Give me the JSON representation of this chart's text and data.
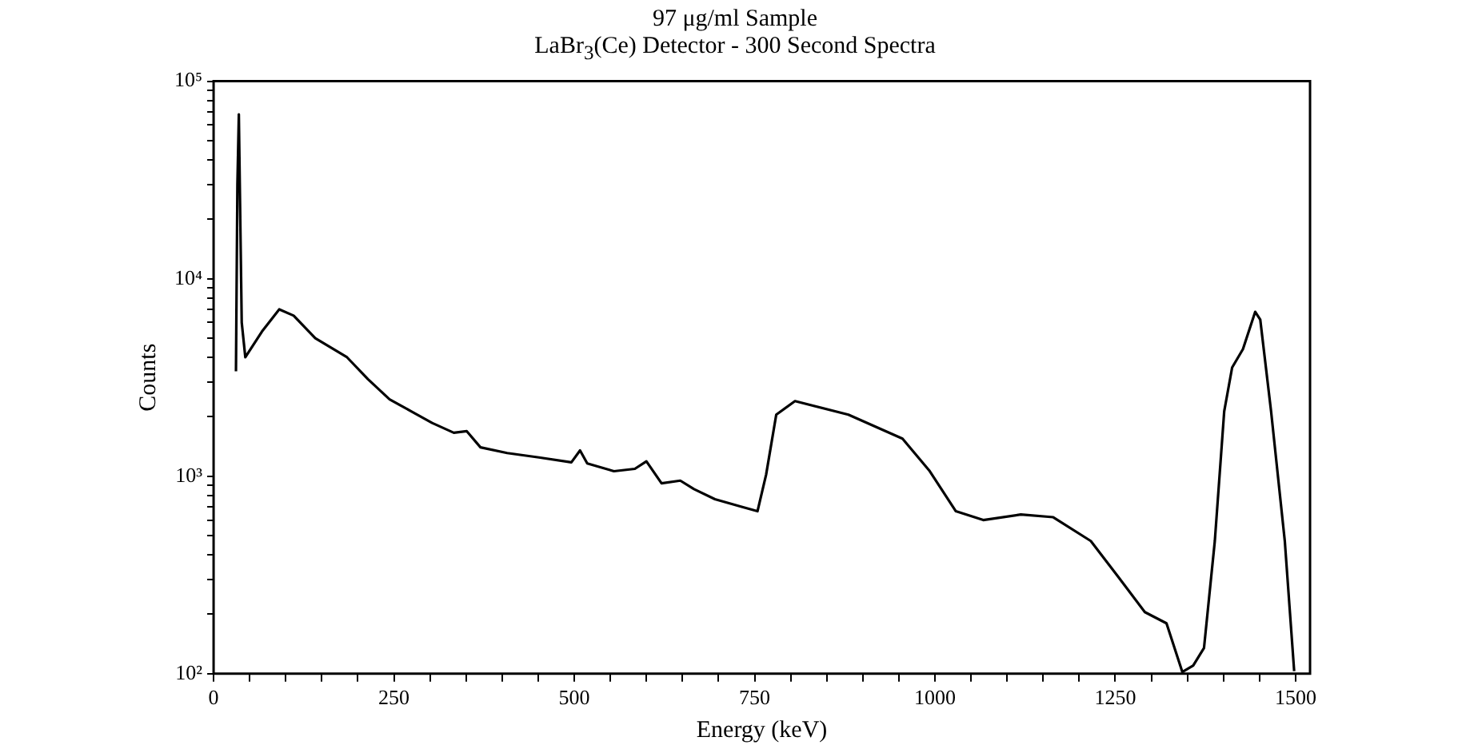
{
  "chart_data": {
    "type": "line",
    "title": "97 μg/ml Sample",
    "subtitle": "LaBr$_{3}$(Ce) Detector - 300 Second Spectra",
    "xlabel": "Energy (keV)",
    "ylabel": "Counts",
    "log": "y",
    "marker": "none",
    "line_style": "solid",
    "xlim": [
      0,
      1520
    ],
    "ylim": [
      100,
      100000
    ],
    "xticks": [
      0,
      {
        "value": 50,
        "label": null
      },
      {
        "value": 100,
        "label": null
      },
      {
        "value": 150,
        "label": null
      },
      {
        "value": 200,
        "label": null
      },
      250,
      {
        "value": 300,
        "label": null
      },
      {
        "value": 350,
        "label": null
      },
      {
        "value": 400,
        "label": null
      },
      {
        "value": 450,
        "label": null
      },
      500,
      {
        "value": 550,
        "label": null
      },
      {
        "value": 600,
        "label": null
      },
      {
        "value": 650,
        "label": null
      },
      {
        "value": 700,
        "label": null
      },
      750,
      {
        "value": 800,
        "label": null
      },
      {
        "value": 850,
        "label": null
      },
      {
        "value": 900,
        "label": null
      },
      {
        "value": 950,
        "label": null
      },
      1000,
      {
        "value": 1050,
        "label": null
      },
      {
        "value": 1100,
        "label": null
      },
      {
        "value": 1150,
        "label": null
      },
      {
        "value": 1200,
        "label": null
      },
      1250,
      {
        "value": 1300,
        "label": null
      },
      {
        "value": 1350,
        "label": null
      },
      {
        "value": 1400,
        "label": null
      },
      {
        "value": 1450,
        "label": null
      },
      1500
    ],
    "yticks": [
      {
        "value": 100,
        "label": "10²"
      },
      {
        "value": 200,
        "label": null
      },
      {
        "value": 300,
        "label": null
      },
      {
        "value": 400,
        "label": null
      },
      {
        "value": 500,
        "label": null
      },
      {
        "value": 600,
        "label": null
      },
      {
        "value": 700,
        "label": null
      },
      {
        "value": 800,
        "label": null
      },
      {
        "value": 900,
        "label": null
      },
      {
        "value": 1000,
        "label": "10³"
      },
      {
        "value": 2000,
        "label": null
      },
      {
        "value": 3000,
        "label": null
      },
      {
        "value": 4000,
        "label": null
      },
      {
        "value": 5000,
        "label": null
      },
      {
        "value": 6000,
        "label": null
      },
      {
        "value": 7000,
        "label": null
      },
      {
        "value": 8000,
        "label": null
      },
      {
        "value": 9000,
        "label": null
      },
      {
        "value": 10000,
        "label": "10⁴"
      },
      {
        "value": 20000,
        "label": null
      },
      {
        "value": 30000,
        "label": null
      },
      {
        "value": 40000,
        "label": null
      },
      {
        "value": 50000,
        "label": null
      },
      {
        "value": 60000,
        "label": null
      },
      {
        "value": 70000,
        "label": null
      },
      {
        "value": 80000,
        "label": null
      },
      {
        "value": 90000,
        "label": null
      },
      {
        "value": 100000,
        "label": "10⁵"
      }
    ],
    "series": [
      {
        "color": "#000000",
        "x": [
          31,
          33,
          35,
          37,
          39,
          44,
          67,
          91,
          111,
          141,
          185,
          214,
          244,
          274,
          303,
          333,
          351,
          370,
          407,
          451,
          496,
          508,
          518,
          555,
          584,
          600,
          621,
          647,
          666,
          695,
          732,
          754,
          766,
          780,
          806,
          880,
          955,
          992,
          1029,
          1067,
          1119,
          1164,
          1216,
          1254,
          1291,
          1321,
          1343,
          1358,
          1373,
          1388,
          1401,
          1412,
          1427,
          1444,
          1451,
          1466,
          1485,
          1498
        ],
        "values": [
          3400,
          30000,
          68000,
          20000,
          6000,
          4000,
          5400,
          7000,
          6500,
          5000,
          4000,
          3100,
          2450,
          2130,
          1860,
          1660,
          1690,
          1400,
          1310,
          1245,
          1175,
          1350,
          1160,
          1060,
          1090,
          1190,
          920,
          950,
          860,
          765,
          700,
          665,
          1020,
          2050,
          2400,
          2050,
          1550,
          1070,
          665,
          600,
          640,
          620,
          470,
          310,
          205,
          180,
          102,
          110,
          135,
          470,
          2130,
          3550,
          4400,
          6800,
          6200,
          2130,
          470,
          103
        ]
      }
    ]
  }
}
